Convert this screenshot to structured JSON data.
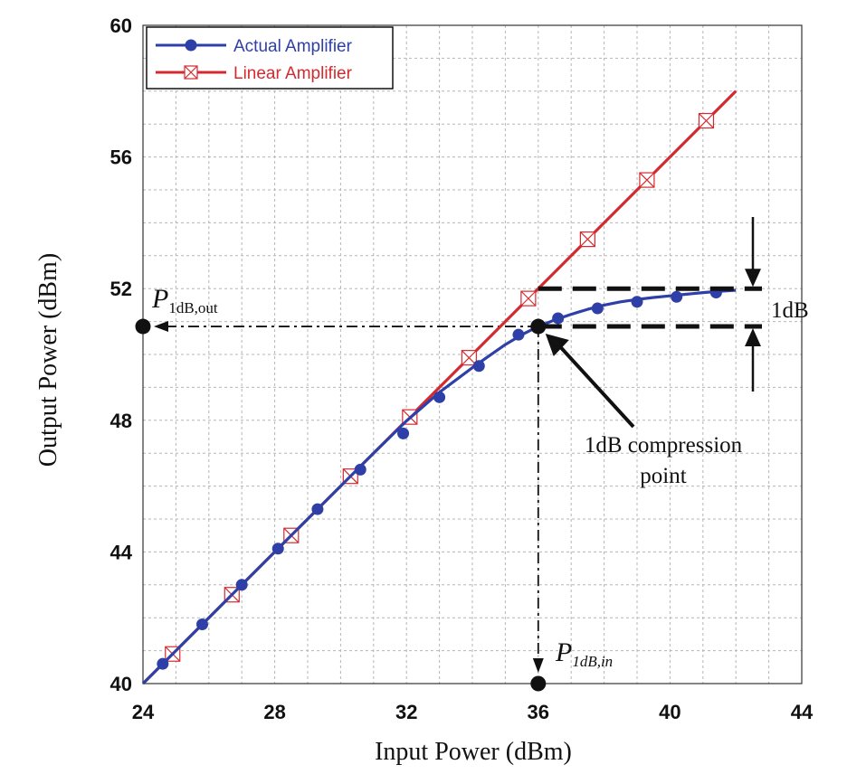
{
  "chart_data": {
    "type": "line",
    "xlabel": "Input Power (dBm)",
    "ylabel": "Output Power (dBm)",
    "xlim": [
      24,
      44
    ],
    "ylim": [
      40,
      60
    ],
    "xticks": [
      "24",
      "28",
      "32",
      "36",
      "40",
      "44"
    ],
    "yticks": [
      "40",
      "44",
      "48",
      "52",
      "56",
      "60"
    ],
    "grid": true,
    "legend_position": "top-left",
    "series": [
      {
        "name": "Actual Amplifier",
        "color": "#2e3fa8",
        "marker": "filled-circle",
        "line_x": [
          24,
          25,
          26,
          27,
          28,
          29,
          30,
          31,
          32,
          33,
          34,
          34.5,
          35,
          35.5,
          36,
          36.5,
          37,
          37.5,
          38,
          38.5,
          39,
          39.5,
          40,
          40.5,
          41,
          41.5,
          42
        ],
        "line_y": [
          40,
          41,
          42,
          43,
          44,
          45,
          46,
          47,
          47.98,
          48.85,
          49.6,
          49.95,
          50.3,
          50.6,
          50.85,
          51.05,
          51.22,
          51.37,
          51.5,
          51.6,
          51.67,
          51.73,
          51.78,
          51.83,
          51.88,
          51.92,
          51.95
        ],
        "x": [
          24.6,
          25.8,
          27.0,
          28.1,
          29.3,
          30.6,
          31.9,
          33.0,
          34.2,
          35.4,
          36.0,
          36.6,
          37.8,
          39.0,
          40.2,
          41.4
        ],
        "y": [
          40.6,
          41.8,
          43.0,
          44.1,
          45.3,
          46.5,
          47.6,
          48.7,
          49.65,
          50.6,
          50.85,
          51.1,
          51.4,
          51.6,
          51.75,
          51.88
        ]
      },
      {
        "name": "Linear Amplifier",
        "color": "#d42a2f",
        "marker": "crossed-square",
        "line_x": [
          24,
          42
        ],
        "line_y": [
          40,
          58
        ],
        "x": [
          24.9,
          26.7,
          28.5,
          30.3,
          32.1,
          33.9,
          35.7,
          37.5,
          39.3,
          41.1
        ],
        "y": [
          40.9,
          42.7,
          44.5,
          46.3,
          48.1,
          49.9,
          51.7,
          53.5,
          55.3,
          57.1
        ]
      }
    ],
    "annotations": {
      "compression_point": {
        "x": 36,
        "y": 50.85
      },
      "p_in_point": {
        "x": 36,
        "y": 40
      },
      "p_out_point": {
        "x": 24,
        "y": 50.85
      },
      "p_out_label_main": "P",
      "p_out_label_sub": "1dB,out",
      "p_in_label_main": "P",
      "p_in_label_sub": "1dB,in",
      "one_db_label": "1dB",
      "compression_label_line1": "1dB compression",
      "compression_label_line2": "point",
      "bracket_upper_y": 52,
      "bracket_lower_y": 50.85
    }
  }
}
